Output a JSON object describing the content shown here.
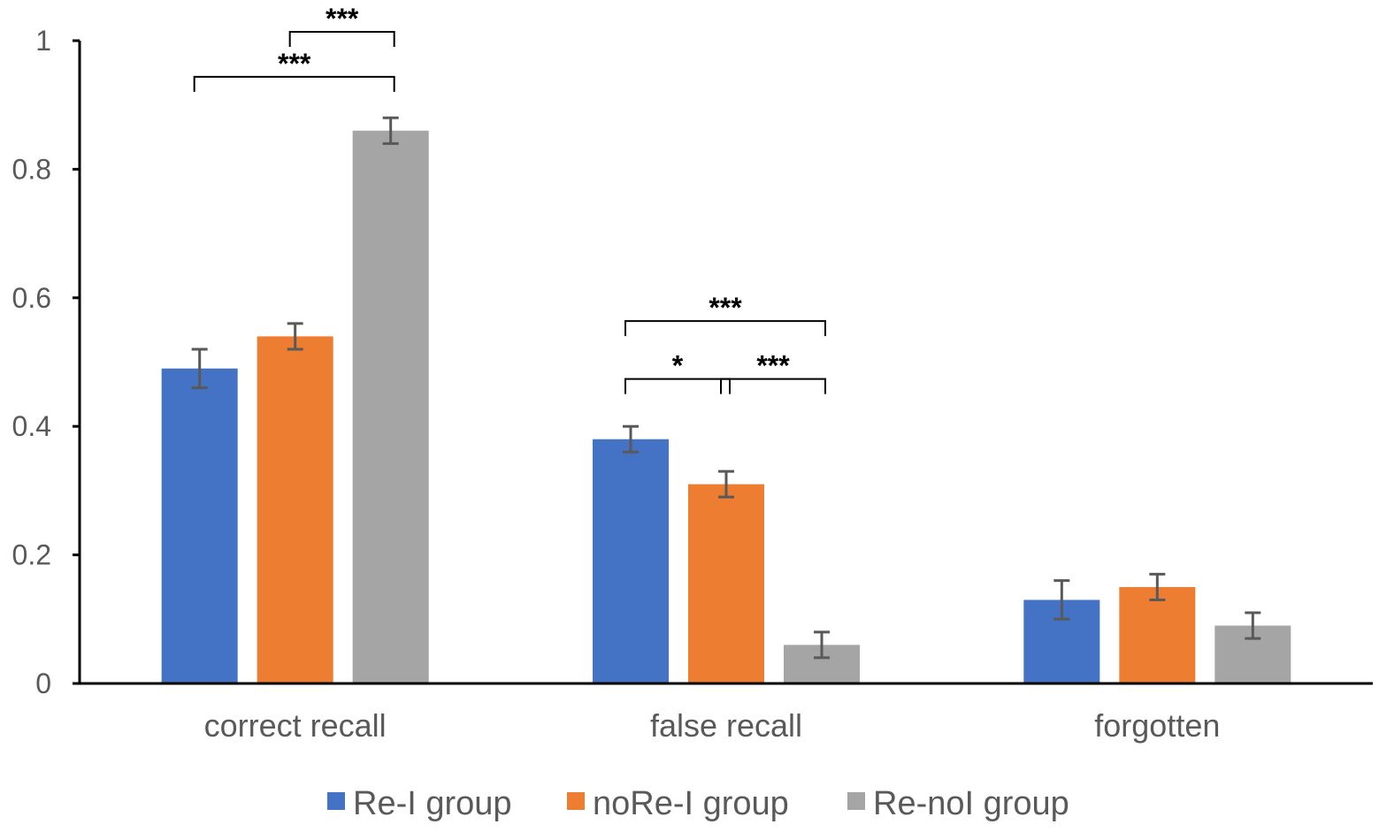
{
  "chart_data": {
    "type": "bar",
    "title": "",
    "xlabel": "",
    "ylabel": "",
    "ylim": [
      0,
      1
    ],
    "yticks": [
      0,
      0.2,
      0.4,
      0.6,
      0.8,
      1
    ],
    "ytick_labels": [
      "0",
      "0.2",
      "0.4",
      "0.6",
      "0.8",
      "1"
    ],
    "grid": false,
    "legend_position": "bottom",
    "categories": [
      "correct recall",
      "false recall",
      "forgotten"
    ],
    "series": [
      {
        "name": "Re-I group",
        "color": "#4472C4",
        "values": [
          0.49,
          0.38,
          0.13
        ],
        "errors": [
          0.03,
          0.02,
          0.03
        ]
      },
      {
        "name": "noRe-I group",
        "color": "#ED7D31",
        "values": [
          0.54,
          0.31,
          0.15
        ],
        "errors": [
          0.02,
          0.02,
          0.02
        ]
      },
      {
        "name": "Re-noI group",
        "color": "#A5A5A5",
        "values": [
          0.86,
          0.06,
          0.09
        ],
        "errors": [
          0.02,
          0.02,
          0.02
        ]
      }
    ],
    "significance": [
      {
        "category": 0,
        "from_series": 1,
        "to_series": 2,
        "label": "***",
        "level": 1.0
      },
      {
        "category": 0,
        "from_series": 0,
        "to_series": 2,
        "label": "***",
        "level": 0.93
      },
      {
        "category": 1,
        "from_series": 0,
        "to_series": 2,
        "label": "***",
        "level": 0.55
      },
      {
        "category": 1,
        "from_series": 0,
        "to_series": 1,
        "label": "*",
        "level": 0.46
      },
      {
        "category": 1,
        "from_series": 1,
        "to_series": 2,
        "label": "***",
        "level": 0.46
      }
    ]
  }
}
